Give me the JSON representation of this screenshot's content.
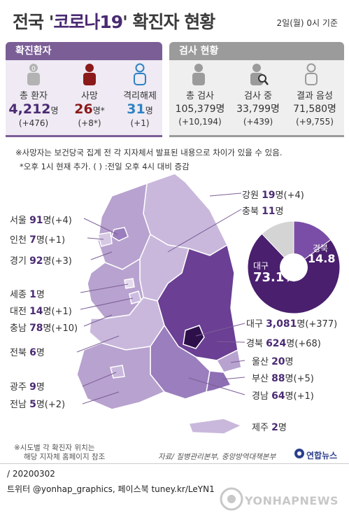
{
  "title": {
    "pre": "전국 '",
    "mid": "코로나19",
    "post": "' 확진자 현황"
  },
  "date": "2일(월) 0시 기준",
  "confirmed": {
    "header": "확진환자",
    "items": [
      {
        "icon": "person-icon-with-badge",
        "badge": "0",
        "label": "총 환자",
        "value": "4,212",
        "unit": "명",
        "change": "(+476)",
        "color": "#4a2a73"
      },
      {
        "icon": "person-icon",
        "label": "사망",
        "value": "26",
        "unit": "명*",
        "change": "(+8*)",
        "color": "#8b1a1a"
      },
      {
        "icon": "person-outline-icon",
        "label": "격리해제",
        "value": "31",
        "unit": "명",
        "change": "(+1)",
        "color": "#2d82c4"
      }
    ]
  },
  "tests": {
    "header": "검사 현황",
    "items": [
      {
        "icon": "person-icon",
        "label": "총 검사",
        "value": "105,379명",
        "change": "(+10,194)"
      },
      {
        "icon": "person-search-icon",
        "label": "검사 중",
        "value": "33,799명",
        "change": "(+439)"
      },
      {
        "icon": "person-outline-icon",
        "label": "결과 음성",
        "value": "71,580명",
        "change": "(+9,755)"
      }
    ]
  },
  "notes": {
    "line1": "※사망자는 보건당국 집계 전 각 지자체서 발표된 내용으로 차이가 있을 수 있음.",
    "line2": "*오후 1시 현재 추가. ( ) :전일 오후 4시 대비 증감"
  },
  "regions": {
    "gangwon": {
      "name": "강원",
      "num": "19",
      "rest": "명(+4)"
    },
    "chungbuk": {
      "name": "충북",
      "num": "11",
      "rest": "명"
    },
    "seoul": {
      "name": "서울",
      "num": "91",
      "rest": "명(+4)"
    },
    "incheon": {
      "name": "인천",
      "num": "7",
      "rest": "명(+1)"
    },
    "gyeonggi": {
      "name": "경기",
      "num": "92",
      "rest": "명(+3)"
    },
    "sejong": {
      "name": "세종",
      "num": "1",
      "rest": "명"
    },
    "daejeon": {
      "name": "대전",
      "num": "14",
      "rest": "명(+1)"
    },
    "chungnam": {
      "name": "충남",
      "num": "78",
      "rest": "명(+10)"
    },
    "jeonbuk": {
      "name": "전북",
      "num": "6",
      "rest": "명"
    },
    "gwangju": {
      "name": "광주",
      "num": "9",
      "rest": "명"
    },
    "jeonnam": {
      "name": "전남",
      "num": "5",
      "rest": "명(+2)"
    },
    "daegu": {
      "name": "대구",
      "num": "3,081",
      "rest": "명(+377)"
    },
    "gyeongbuk": {
      "name": "경북",
      "num": "624",
      "rest": "명(+68)"
    },
    "ulsan": {
      "name": "울산",
      "num": "20",
      "rest": "명"
    },
    "busan": {
      "name": "부산",
      "num": "88",
      "rest": "명(+5)"
    },
    "gyeongnam": {
      "name": "경남",
      "num": "64",
      "rest": "명(+1)"
    },
    "jeju": {
      "name": "제주",
      "num": "2",
      "rest": "명"
    }
  },
  "chart_data": {
    "type": "pie",
    "slices": [
      {
        "name": "대구",
        "value": 73.1,
        "color": "#4a1f6e"
      },
      {
        "name": "경북",
        "value": 14.8,
        "color": "#7a4ea6"
      },
      {
        "name": "",
        "value": 12.1,
        "color": "#d4d4d4"
      }
    ]
  },
  "footnote": {
    "line1": "※시도별 각 확진자 위치는",
    "line2": "해당 지자체 홈페이지 참조"
  },
  "source": "자료/ 질병관리본부, 중앙방역대책본부",
  "brand": "연합뉴스",
  "credit": {
    "date": "/ 20200302",
    "social": "트위터 @yonhap_graphics, 페이스북 tuney.kr/LeYN1"
  },
  "watermark": "YONHAPNEWS"
}
